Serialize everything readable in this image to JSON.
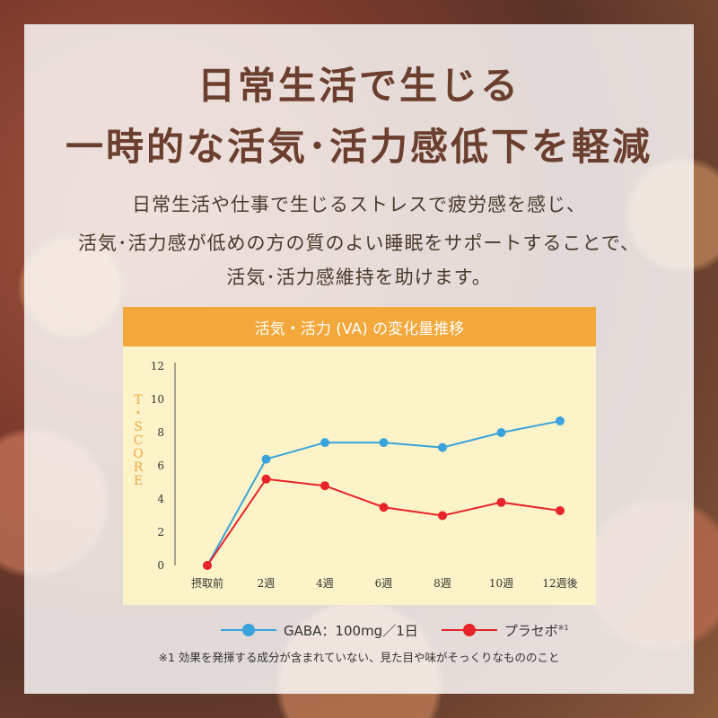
{
  "headline": {
    "line1": "日常生活で生じる",
    "line2": "一時的な活気･活力感低下を軽減"
  },
  "description": {
    "line1": "日常生活や仕事で生じるストレスで疲労感を感じ、",
    "line2": "活気･活力感が低めの方の質のよい睡眠をサポートすることで、",
    "line3": "活気･活力感維持を助けます。"
  },
  "chart_data": {
    "type": "line",
    "title": "活気・活力 (VA) の変化量推移",
    "ylabel": "T-SCORE",
    "categories": [
      "摂取前",
      "2週",
      "4週",
      "6週",
      "8週",
      "10週",
      "12週後"
    ],
    "ylim": [
      0,
      12
    ],
    "yticks": [
      0,
      2,
      4,
      6,
      8,
      10,
      12
    ],
    "grid": false,
    "legend_position": "bottom",
    "series": [
      {
        "name": "GABA：100mg／1日",
        "color": "#3aa3dc",
        "values": [
          0,
          6.4,
          7.4,
          7.4,
          7.1,
          8.0,
          8.7
        ]
      },
      {
        "name": "プラセボ",
        "name_sup": "※1",
        "color": "#e8232a",
        "values": [
          0,
          5.2,
          4.8,
          3.5,
          3.0,
          3.8,
          3.3
        ]
      }
    ]
  },
  "footnote": "※1 効果を発揮する成分が含まれていない、見た目や味がそっくりなもののこと"
}
